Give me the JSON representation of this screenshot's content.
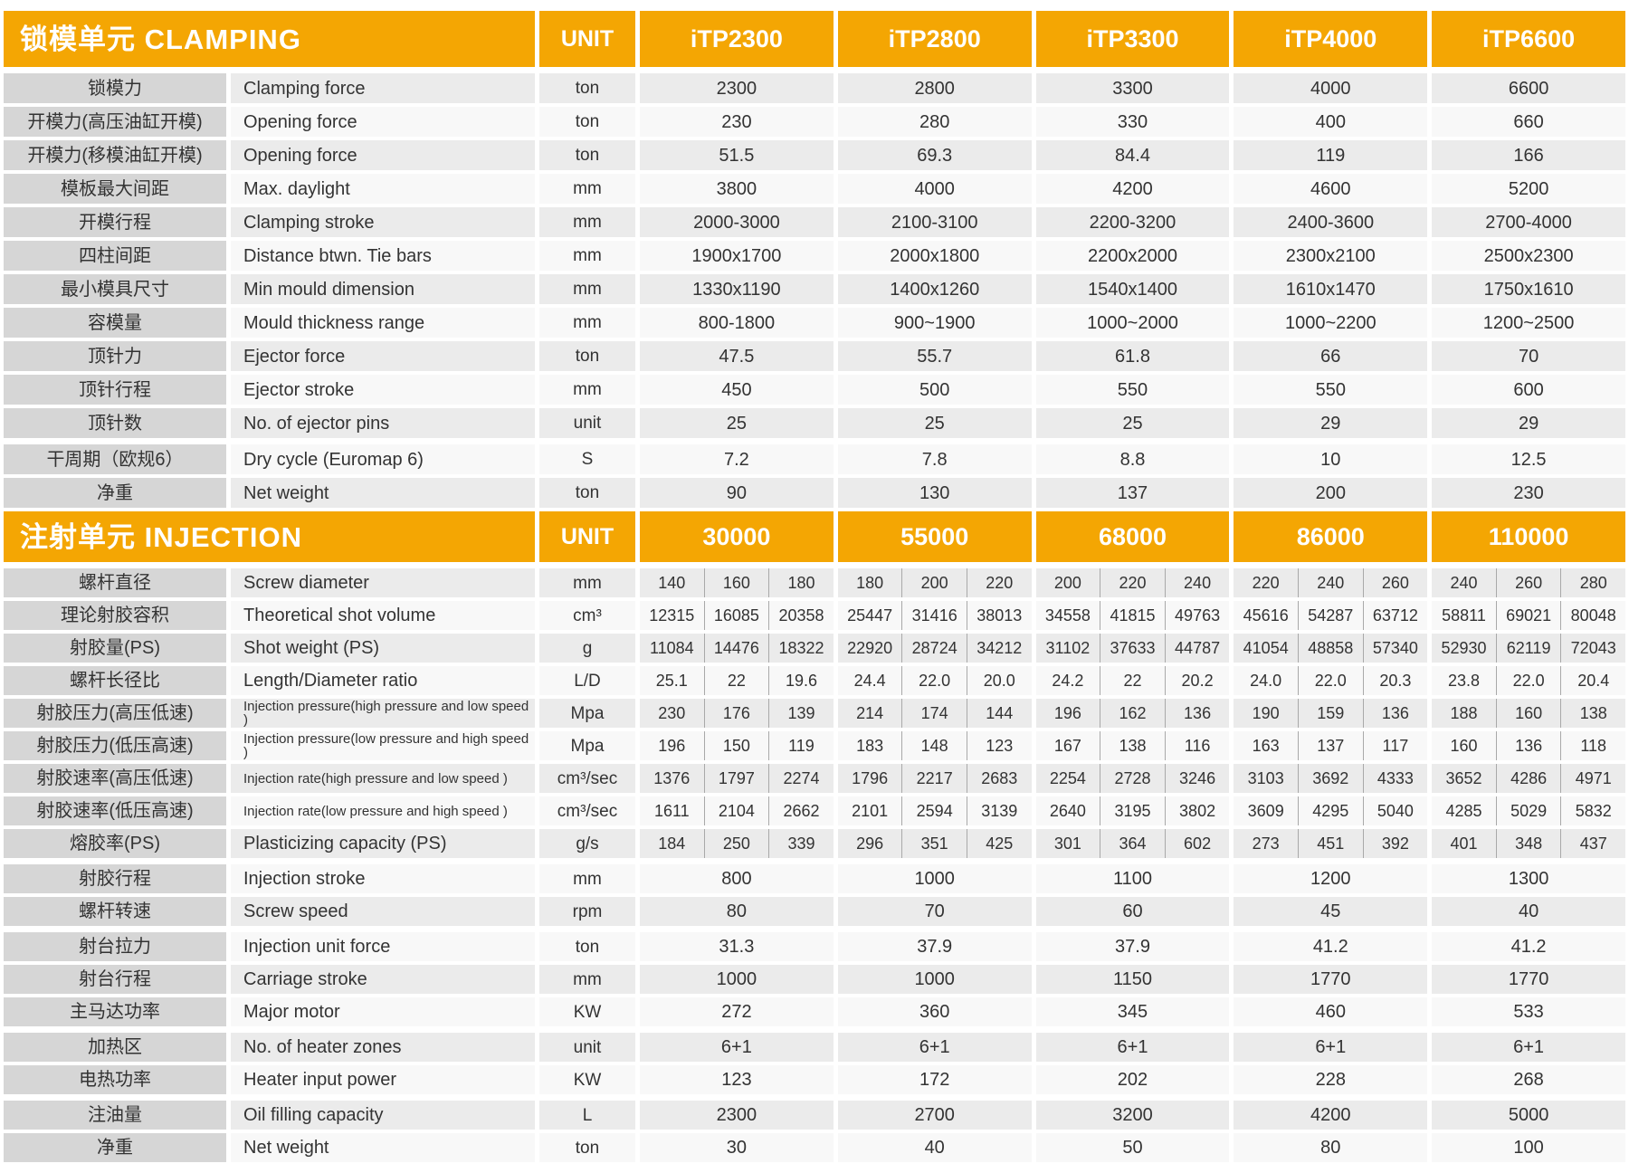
{
  "colors": {
    "accent_orange": "#f4a603",
    "label_gray": "#d6d6d6",
    "row_gray": "#ebebeb",
    "row_white": "#f8f8f8",
    "text": "#333333"
  },
  "clamping": {
    "title": "锁模单元 CLAMPING",
    "unit_header": "UNIT",
    "models": [
      "iTP2300",
      "iTP2800",
      "iTP3300",
      "iTP4000",
      "iTP6600"
    ],
    "rows": [
      {
        "cn": "锁模力",
        "en": "Clamping force",
        "unit": "ton",
        "values": [
          "2300",
          "2800",
          "3300",
          "4000",
          "6600"
        ]
      },
      {
        "cn": "开模力(高压油缸开模)",
        "en": "Opening force",
        "unit": "ton",
        "values": [
          "230",
          "280",
          "330",
          "400",
          "660"
        ]
      },
      {
        "cn": "开模力(移模油缸开模)",
        "en": "Opening force",
        "unit": "ton",
        "values": [
          "51.5",
          "69.3",
          "84.4",
          "119",
          "166"
        ]
      },
      {
        "cn": "模板最大间距",
        "en": "Max. daylight",
        "unit": "mm",
        "values": [
          "3800",
          "4000",
          "4200",
          "4600",
          "5200"
        ]
      },
      {
        "cn": "开模行程",
        "en": "Clamping stroke",
        "unit": "mm",
        "values": [
          "2000-3000",
          "2100-3100",
          "2200-3200",
          "2400-3600",
          "2700-4000"
        ]
      },
      {
        "cn": "四柱间距",
        "en": "Distance btwn. Tie bars",
        "unit": "mm",
        "values": [
          "1900x1700",
          "2000x1800",
          "2200x2000",
          "2300x2100",
          "2500x2300"
        ]
      },
      {
        "cn": "最小模具尺寸",
        "en": "Min mould dimension",
        "unit": "mm",
        "values": [
          "1330x1190",
          "1400x1260",
          "1540x1400",
          "1610x1470",
          "1750x1610"
        ]
      },
      {
        "cn": "容模量",
        "en": "Mould thickness range",
        "unit": "mm",
        "values": [
          "800-1800",
          "900~1900",
          "1000~2000",
          "1000~2200",
          "1200~2500"
        ]
      },
      {
        "cn": "顶针力",
        "en": "Ejector force",
        "unit": "ton",
        "values": [
          "47.5",
          "55.7",
          "61.8",
          "66",
          "70"
        ]
      },
      {
        "cn": "顶针行程",
        "en": "Ejector stroke",
        "unit": "mm",
        "values": [
          "450",
          "500",
          "550",
          "550",
          "600"
        ]
      },
      {
        "cn": "顶针数",
        "en": "No. of ejector pins",
        "unit": "unit",
        "values": [
          "25",
          "25",
          "25",
          "29",
          "29"
        ]
      },
      {
        "cn": "干周期（欧规6）",
        "en": "Dry cycle (Euromap 6)",
        "unit": "S",
        "gap_before": true,
        "values": [
          "7.2",
          "7.8",
          "8.8",
          "10",
          "12.5"
        ]
      },
      {
        "cn": "净重",
        "en": "Net weight",
        "unit": "ton",
        "values": [
          "90",
          "130",
          "137",
          "200",
          "230"
        ]
      }
    ]
  },
  "injection": {
    "title": "注射单元 INJECTION",
    "unit_header": "UNIT",
    "models": [
      "30000",
      "55000",
      "68000",
      "86000",
      "110000"
    ],
    "rows": [
      {
        "cn": "螺杆直径",
        "en": "Screw diameter",
        "unit": "mm",
        "sub": true,
        "values": [
          "140",
          "160",
          "180",
          "180",
          "200",
          "220",
          "200",
          "220",
          "240",
          "220",
          "240",
          "260",
          "240",
          "260",
          "280"
        ]
      },
      {
        "cn": "理论射胶容积",
        "en": "Theoretical shot volume",
        "unit": "cm³",
        "sub": true,
        "values": [
          "12315",
          "16085",
          "20358",
          "25447",
          "31416",
          "38013",
          "34558",
          "41815",
          "49763",
          "45616",
          "54287",
          "63712",
          "58811",
          "69021",
          "80048"
        ]
      },
      {
        "cn": "射胶量(PS)",
        "en": "Shot weight (PS)",
        "unit": "g",
        "sub": true,
        "values": [
          "11084",
          "14476",
          "18322",
          "22920",
          "28724",
          "34212",
          "31102",
          "37633",
          "44787",
          "41054",
          "48858",
          "57340",
          "52930",
          "62119",
          "72043"
        ]
      },
      {
        "cn": "螺杆长径比",
        "en": "Length/Diameter ratio",
        "unit": "L/D",
        "sub": true,
        "values": [
          "25.1",
          "22",
          "19.6",
          "24.4",
          "22.0",
          "20.0",
          "24.2",
          "22",
          "20.2",
          "24.0",
          "22.0",
          "20.3",
          "23.8",
          "22.0",
          "20.4"
        ]
      },
      {
        "cn": "射胶压力(高压低速)",
        "en": "Injection pressure(high pressure and low speed )",
        "en_small": true,
        "unit": "Mpa",
        "sub": true,
        "values": [
          "230",
          "176",
          "139",
          "214",
          "174",
          "144",
          "196",
          "162",
          "136",
          "190",
          "159",
          "136",
          "188",
          "160",
          "138"
        ]
      },
      {
        "cn": "射胶压力(低压高速)",
        "en": "Injection pressure(low pressure and high speed )",
        "en_small": true,
        "unit": "Mpa",
        "sub": true,
        "values": [
          "196",
          "150",
          "119",
          "183",
          "148",
          "123",
          "167",
          "138",
          "116",
          "163",
          "137",
          "117",
          "160",
          "136",
          "118"
        ]
      },
      {
        "cn": "射胶速率(高压低速)",
        "en": "Injection rate(high pressure and low speed )",
        "en_small": true,
        "unit": "cm³/sec",
        "sub": true,
        "values": [
          "1376",
          "1797",
          "2274",
          "1796",
          "2217",
          "2683",
          "2254",
          "2728",
          "3246",
          "3103",
          "3692",
          "4333",
          "3652",
          "4286",
          "4971"
        ]
      },
      {
        "cn": "射胶速率(低压高速)",
        "en": "Injection rate(low pressure and high speed )",
        "en_small": true,
        "unit": "cm³/sec",
        "sub": true,
        "values": [
          "1611",
          "2104",
          "2662",
          "2101",
          "2594",
          "3139",
          "2640",
          "3195",
          "3802",
          "3609",
          "4295",
          "5040",
          "4285",
          "5029",
          "5832"
        ]
      },
      {
        "cn": "熔胶率(PS)",
        "en": "Plasticizing capacity (PS)",
        "unit": "g/s",
        "sub": true,
        "values": [
          "184",
          "250",
          "339",
          "296",
          "351",
          "425",
          "301",
          "364",
          "602",
          "273",
          "451",
          "392",
          "401",
          "348",
          "437"
        ]
      },
      {
        "cn": "射胶行程",
        "en": "Injection stroke",
        "unit": "mm",
        "gap_before": true,
        "values": [
          "800",
          "1000",
          "1100",
          "1200",
          "1300"
        ]
      },
      {
        "cn": "螺杆转速",
        "en": "Screw speed",
        "unit": "rpm",
        "values": [
          "80",
          "70",
          "60",
          "45",
          "40"
        ]
      },
      {
        "cn": "射台拉力",
        "en": "Injection unit force",
        "unit": "ton",
        "gap_before": true,
        "values": [
          "31.3",
          "37.9",
          "37.9",
          "41.2",
          "41.2"
        ]
      },
      {
        "cn": "射台行程",
        "en": "Carriage stroke",
        "unit": "mm",
        "values": [
          "1000",
          "1000",
          "1150",
          "1770",
          "1770"
        ]
      },
      {
        "cn": "主马达功率",
        "en": "Major motor",
        "unit": "KW",
        "values": [
          "272",
          "360",
          "345",
          "460",
          "533"
        ]
      },
      {
        "cn": "加热区",
        "en": "No. of heater zones",
        "unit": "unit",
        "gap_before": true,
        "values": [
          "6+1",
          "6+1",
          "6+1",
          "6+1",
          "6+1"
        ]
      },
      {
        "cn": "电热功率",
        "en": "Heater input power",
        "unit": "KW",
        "values": [
          "123",
          "172",
          "202",
          "228",
          "268"
        ]
      },
      {
        "cn": "注油量",
        "en": "Oil filling capacity",
        "unit": "L",
        "gap_before": true,
        "values": [
          "2300",
          "2700",
          "3200",
          "4200",
          "5000"
        ]
      },
      {
        "cn": "净重",
        "en": "Net weight",
        "unit": "ton",
        "values": [
          "30",
          "40",
          "50",
          "80",
          "100"
        ]
      }
    ]
  }
}
